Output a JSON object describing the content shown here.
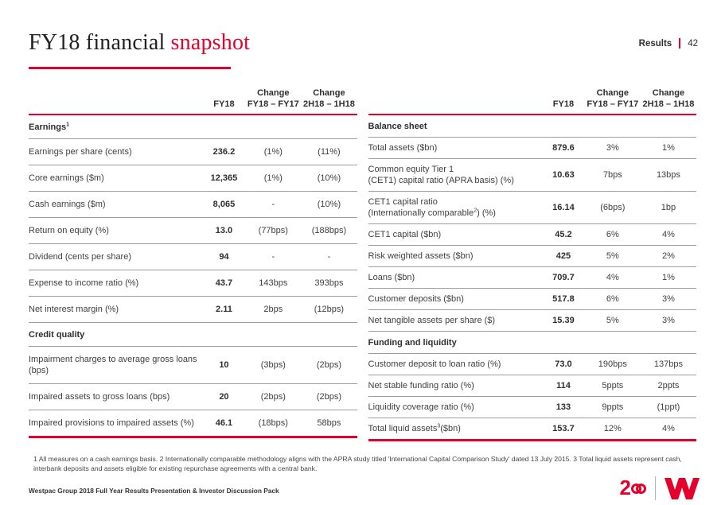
{
  "colors": {
    "accent_red": "#e4002b",
    "text_dark": "#3c3c3c",
    "row_border": "#9c9c9c"
  },
  "header": {
    "title_main": "FY18 financial",
    "title_accent": "snapshot",
    "results_label": "Results",
    "page_number": "42"
  },
  "columns": {
    "fy18": "FY18",
    "change1_line1": "Change",
    "change1_line2": "FY18 – FY17",
    "change2_line1": "Change",
    "change2_line2": "2H18 – 1H18"
  },
  "tables": {
    "left": {
      "rows": [
        {
          "t": "section",
          "label": "Earnings",
          "sup": "1"
        },
        {
          "t": "data",
          "label": "Earnings per share (cents)",
          "v": [
            "236.2",
            "(1%)",
            "(11%)"
          ]
        },
        {
          "t": "data",
          "label": "Core earnings ($m)",
          "v": [
            "12,365",
            "(1%)",
            "(10%)"
          ]
        },
        {
          "t": "data",
          "label": "Cash earnings ($m)",
          "v": [
            "8,065",
            "-",
            "(10%)"
          ]
        },
        {
          "t": "data",
          "label": "Return on equity (%)",
          "v": [
            "13.0",
            "(77bps)",
            "(188bps)"
          ]
        },
        {
          "t": "data",
          "label": "Dividend (cents per share)",
          "v": [
            "94",
            "-",
            "-"
          ]
        },
        {
          "t": "data",
          "label": "Expense to income ratio (%)",
          "v": [
            "43.7",
            "143bps",
            "393bps"
          ]
        },
        {
          "t": "data",
          "label": "Net interest margin (%)",
          "v": [
            "2.11",
            "2bps",
            "(12bps)"
          ]
        },
        {
          "t": "section",
          "label": "Credit quality"
        },
        {
          "t": "data",
          "label": "Impairment charges to average gross loans (bps)",
          "v": [
            "10",
            "(3bps)",
            "(2bps)"
          ]
        },
        {
          "t": "data",
          "label": "Impaired assets to gross loans (bps)",
          "v": [
            "20",
            "(2bps)",
            "(2bps)"
          ]
        },
        {
          "t": "data",
          "label": "Impaired provisions to impaired assets (%)",
          "v": [
            "46.1",
            "(18bps)",
            "58bps"
          ]
        }
      ]
    },
    "right": {
      "rows": [
        {
          "t": "section",
          "label": "Balance sheet"
        },
        {
          "t": "data",
          "label": "Total assets ($bn)",
          "v": [
            "879.6",
            "3%",
            "1%"
          ]
        },
        {
          "t": "data",
          "label": "Common equity Tier 1\n(CET1) capital ratio (APRA basis)  (%)",
          "v": [
            "10.63",
            "7bps",
            "13bps"
          ]
        },
        {
          "t": "data",
          "label": "CET1 capital ratio\n(Internationally comparable",
          "sup": "2",
          "tail": ") (%)",
          "v": [
            "16.14",
            "(6bps)",
            "1bp"
          ]
        },
        {
          "t": "data",
          "label": "CET1 capital ($bn)",
          "v": [
            "45.2",
            "6%",
            "4%"
          ]
        },
        {
          "t": "data",
          "label": "Risk weighted assets ($bn)",
          "v": [
            "425",
            "5%",
            "2%"
          ]
        },
        {
          "t": "data",
          "label": "Loans ($bn)",
          "v": [
            "709.7",
            "4%",
            "1%"
          ]
        },
        {
          "t": "data",
          "label": "Customer deposits ($bn)",
          "v": [
            "517.8",
            "6%",
            "3%"
          ]
        },
        {
          "t": "data",
          "label": "Net tangible assets per share ($)",
          "v": [
            "15.39",
            "5%",
            "3%"
          ]
        },
        {
          "t": "section",
          "label": "Funding and liquidity"
        },
        {
          "t": "data",
          "label": "Customer deposit to loan ratio (%)",
          "v": [
            "73.0",
            "190bps",
            "137bps"
          ]
        },
        {
          "t": "data",
          "label": "Net stable funding ratio (%)",
          "v": [
            "114",
            "5ppts",
            "2ppts"
          ]
        },
        {
          "t": "data",
          "label": "Liquidity coverage ratio (%)",
          "v": [
            "133",
            "9ppts",
            "(1ppt)"
          ]
        },
        {
          "t": "data",
          "label": "Total liquid assets",
          "sup": "3",
          "tail": "($bn)",
          "v": [
            "153.7",
            "12%",
            "4%"
          ]
        }
      ]
    }
  },
  "footnote": "1 All measures on a cash earnings basis.  2 Internationally comparable methodology aligns with the APRA study titled 'International Capital Comparison Study' dated 13 July 2015. 3 Total liquid assets represent cash, interbank deposits and assets eligible for existing repurchase agreements with a central bank.",
  "footer": {
    "text": "Westpac Group 2018 Full Year Results Presentation & Investor Discussion Pack"
  },
  "logo": {
    "anniversary_digit": "2",
    "anniversary_label": "200"
  }
}
